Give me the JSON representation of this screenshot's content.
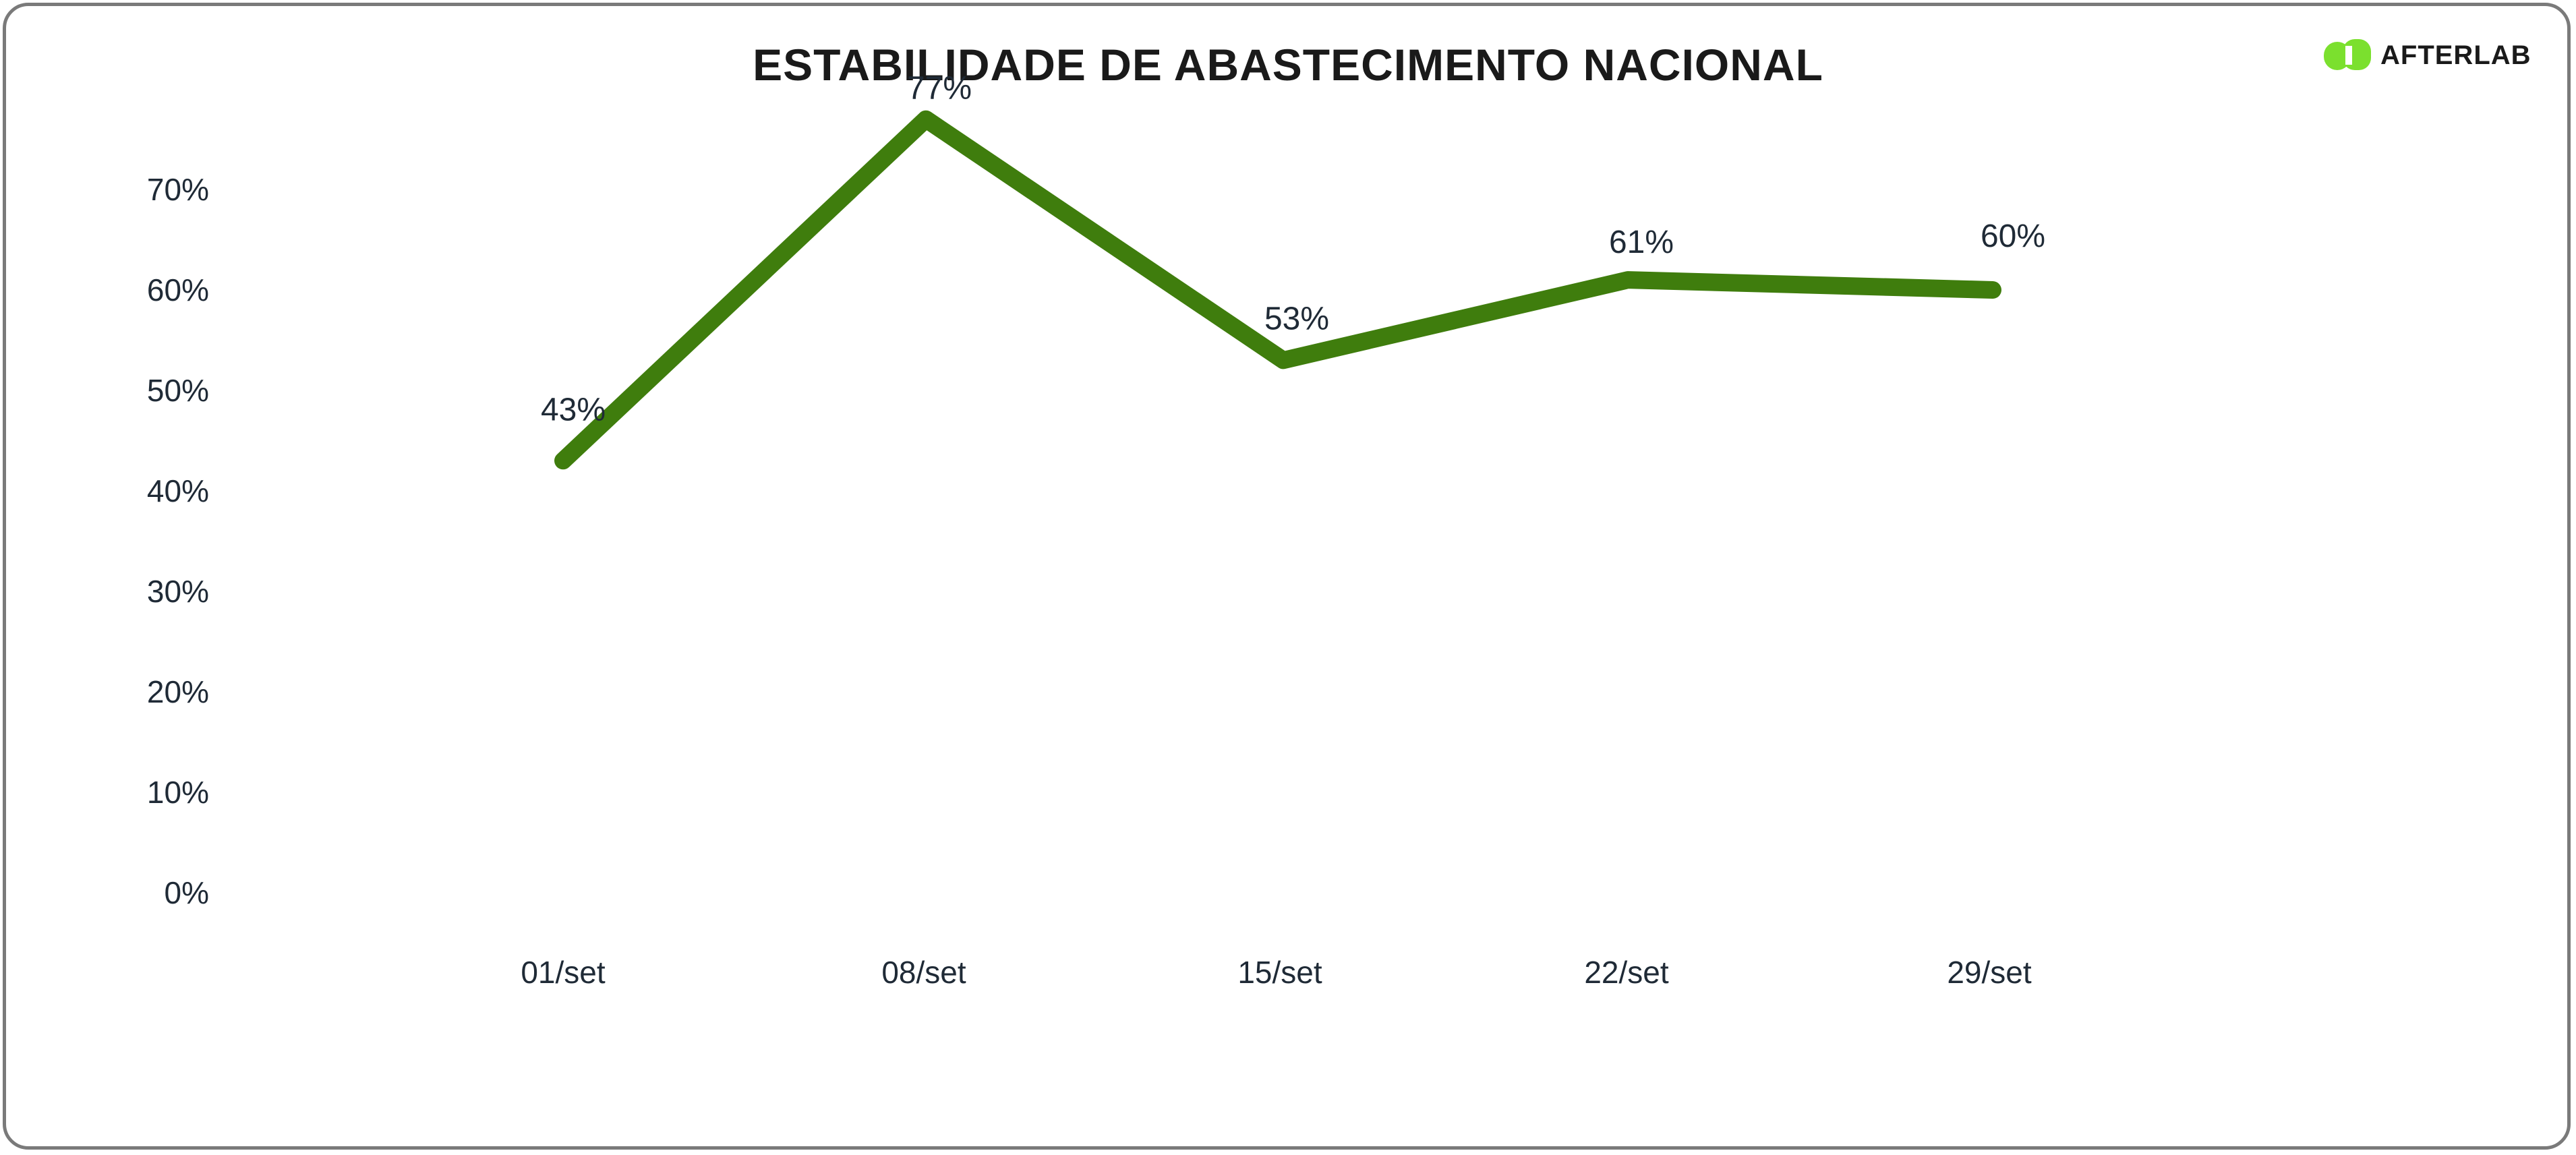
{
  "chart_data": {
    "type": "line",
    "title": "ESTABILIDADE DE ABASTECIMENTO NACIONAL",
    "xlabel": "",
    "ylabel": "",
    "categories": [
      "01/set",
      "08/set",
      "15/set",
      "22/set",
      "29/set"
    ],
    "series": [
      {
        "values": [
          43,
          77,
          53,
          61,
          60
        ],
        "data_labels": [
          "43%",
          "77%",
          "53%",
          "61%",
          "60%"
        ],
        "color": "#3f7d0d"
      }
    ],
    "ylim": [
      0,
      70
    ],
    "yticks": [
      0,
      10,
      20,
      30,
      40,
      50,
      60,
      70
    ],
    "ytick_labels": [
      "0%",
      "10%",
      "20%",
      "30%",
      "40%",
      "50%",
      "60%",
      "70%"
    ],
    "grid": false,
    "legend": "none"
  },
  "brand": {
    "name": "AFTERLAB",
    "color": "#7be02e",
    "icon": "afterlab-logo-icon"
  },
  "frame": {
    "border_color": "#7a7a7a"
  }
}
